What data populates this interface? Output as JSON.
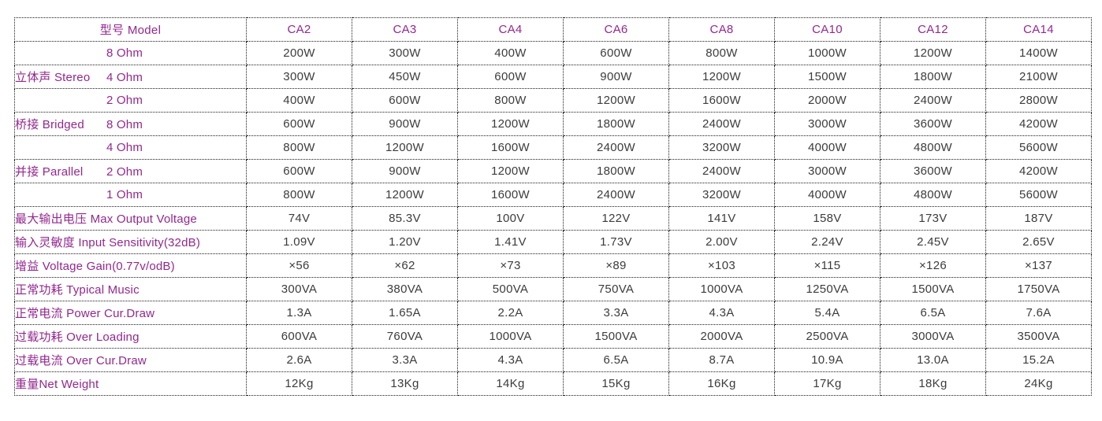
{
  "colors": {
    "label_text": "#93278F",
    "value_text": "#3C3C3C",
    "border": "#1C1C1C",
    "background": "#FFFFFF"
  },
  "table": {
    "corner_label": "型号 Model",
    "model_columns": [
      "CA2",
      "CA3",
      "CA4",
      "CA6",
      "CA8",
      "CA10",
      "CA12",
      "CA14"
    ],
    "rows": [
      {
        "group": "",
        "sub": "8 Ohm",
        "values": [
          "200W",
          "300W",
          "400W",
          "600W",
          "800W",
          "1000W",
          "1200W",
          "1400W"
        ]
      },
      {
        "group": "立体声 Stereo",
        "sub": "4 Ohm",
        "values": [
          "300W",
          "450W",
          "600W",
          "900W",
          "1200W",
          "1500W",
          "1800W",
          "2100W"
        ]
      },
      {
        "group": "",
        "sub": "2 Ohm",
        "values": [
          "400W",
          "600W",
          "800W",
          "1200W",
          "1600W",
          "2000W",
          "2400W",
          "2800W"
        ]
      },
      {
        "group": "桥接 Bridged",
        "sub": "8 Ohm",
        "values": [
          "600W",
          "900W",
          "1200W",
          "1800W",
          "2400W",
          "3000W",
          "3600W",
          "4200W"
        ]
      },
      {
        "group": "",
        "sub": "4 Ohm",
        "values": [
          "800W",
          "1200W",
          "1600W",
          "2400W",
          "3200W",
          "4000W",
          "4800W",
          "5600W"
        ]
      },
      {
        "group": "并接 Parallel",
        "sub": "2 Ohm",
        "values": [
          "600W",
          "900W",
          "1200W",
          "1800W",
          "2400W",
          "3000W",
          "3600W",
          "4200W"
        ]
      },
      {
        "group": "",
        "sub": "1 Ohm",
        "values": [
          "800W",
          "1200W",
          "1600W",
          "2400W",
          "3200W",
          "4000W",
          "4800W",
          "5600W"
        ]
      },
      {
        "label": "最大输出电压 Max Output Voltage",
        "values": [
          "74V",
          "85.3V",
          "100V",
          "122V",
          "141V",
          "158V",
          "173V",
          "187V"
        ]
      },
      {
        "label": "输入灵敏度 Input Sensitivity(32dB)",
        "values": [
          "1.09V",
          "1.20V",
          "1.41V",
          "1.73V",
          "2.00V",
          "2.24V",
          "2.45V",
          "2.65V"
        ]
      },
      {
        "label": "增益 Voltage Gain(0.77v/odB)",
        "values": [
          "×56",
          "×62",
          "×73",
          "×89",
          "×103",
          "×115",
          "×126",
          "×137"
        ]
      },
      {
        "label": "正常功耗 Typical Music",
        "values": [
          "300VA",
          "380VA",
          "500VA",
          "750VA",
          "1000VA",
          "1250VA",
          "1500VA",
          "1750VA"
        ]
      },
      {
        "label": "正常电流 Power Cur.Draw",
        "values": [
          "1.3A",
          "1.65A",
          "2.2A",
          "3.3A",
          "4.3A",
          "5.4A",
          "6.5A",
          "7.6A"
        ]
      },
      {
        "label": "过载功耗 Over Loading",
        "values": [
          "600VA",
          "760VA",
          "1000VA",
          "1500VA",
          "2000VA",
          "2500VA",
          "3000VA",
          "3500VA"
        ]
      },
      {
        "label": "过载电流 Over Cur.Draw",
        "values": [
          "2.6A",
          "3.3A",
          "4.3A",
          "6.5A",
          "8.7A",
          "10.9A",
          "13.0A",
          "15.2A"
        ]
      },
      {
        "label": "重量Net Weight",
        "values": [
          "12Kg",
          "13Kg",
          "14Kg",
          "15Kg",
          "16Kg",
          "17Kg",
          "18Kg",
          "24Kg"
        ]
      }
    ]
  }
}
